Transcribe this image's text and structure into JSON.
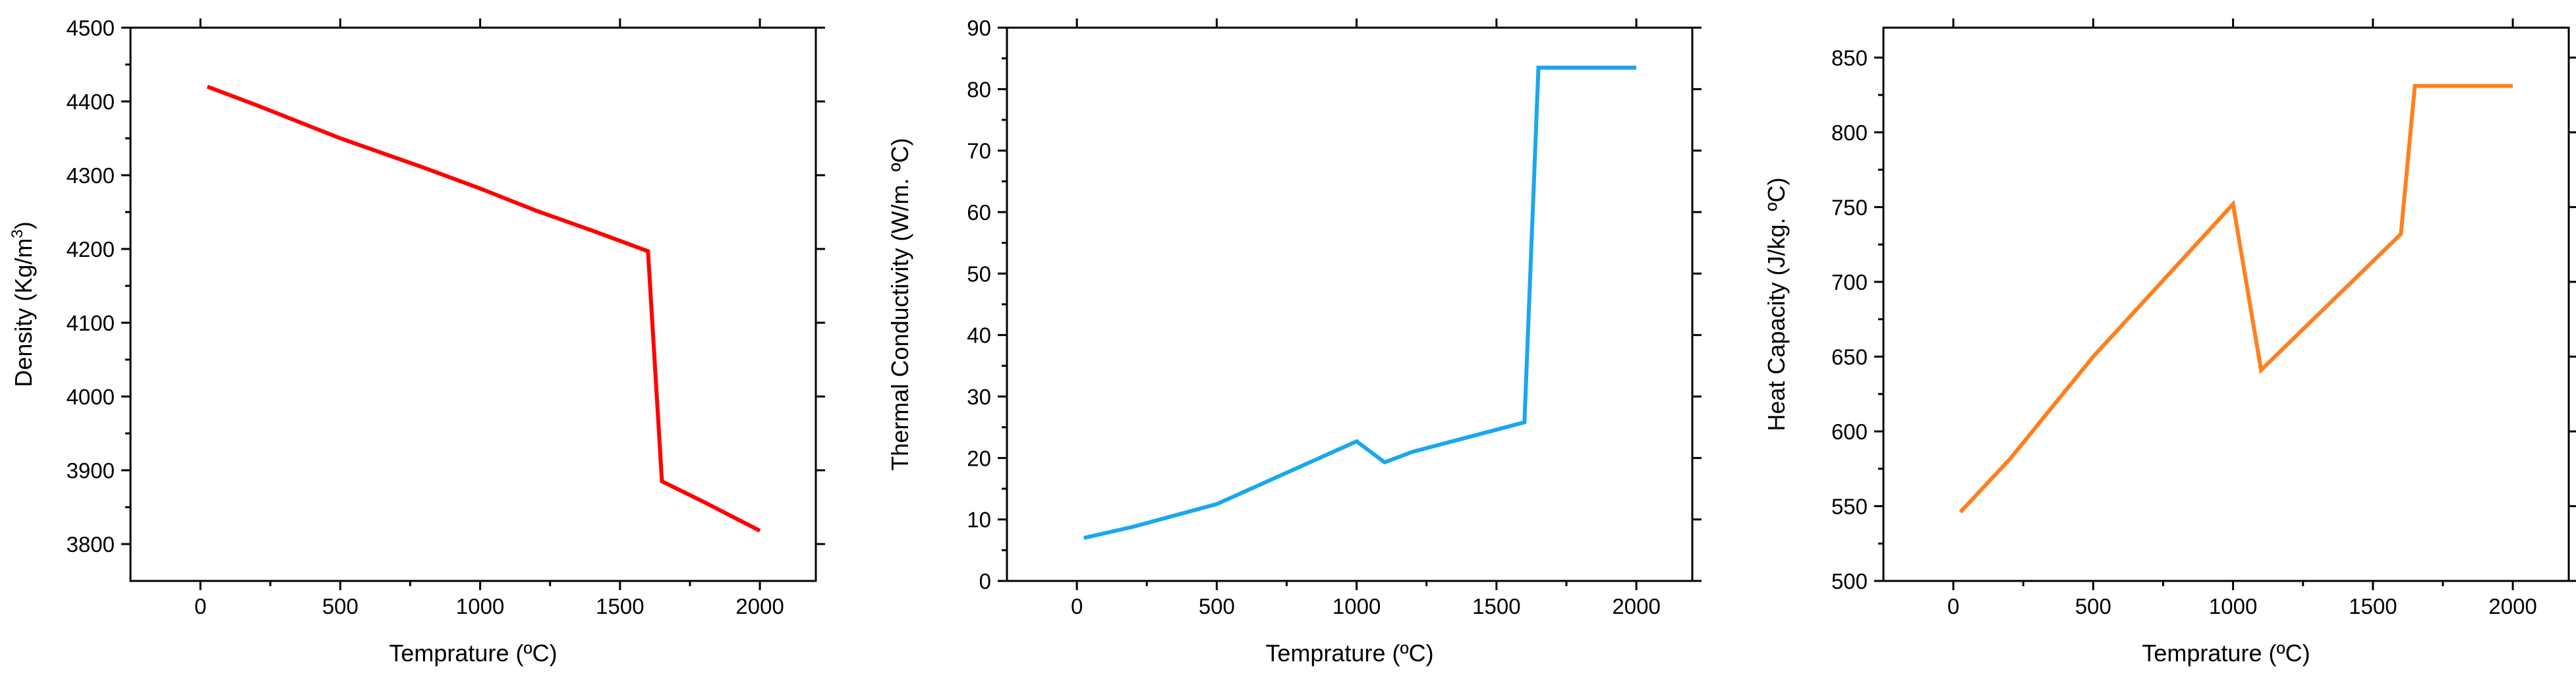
{
  "chart_data": [
    {
      "type": "line",
      "title": "",
      "xlabel": "Temprature (ºC)",
      "ylabel_main": "Density (Kg/m",
      "ylabel_sup": "3",
      "ylabel_end": ")",
      "xlim": [
        -250,
        2200
      ],
      "ylim": [
        3750,
        4500
      ],
      "xticks": [
        0,
        500,
        1000,
        1500,
        2000
      ],
      "yticks": [
        3800,
        3900,
        4000,
        4100,
        4200,
        4300,
        4400,
        4500
      ],
      "series": [
        {
          "name": "Density",
          "color": "#ff0000",
          "x": [
            25,
            200,
            500,
            800,
            1000,
            1200,
            1400,
            1600,
            1650,
            1800,
            2000
          ],
          "y": [
            4420,
            4395,
            4350,
            4310,
            4282,
            4252,
            4225,
            4197,
            3885,
            3857,
            3818
          ]
        }
      ]
    },
    {
      "type": "line",
      "title": "",
      "xlabel": "Temprature (ºC)",
      "ylabel_main": "Thermal Conductivity (W/m. ºC)",
      "ylabel_sup": "",
      "ylabel_end": "",
      "xlim": [
        -250,
        2200
      ],
      "ylim": [
        0,
        90
      ],
      "xticks": [
        0,
        500,
        1000,
        1500,
        2000
      ],
      "yticks": [
        0,
        10,
        20,
        30,
        40,
        50,
        60,
        70,
        80,
        90
      ],
      "series": [
        {
          "name": "Thermal Conductivity",
          "color": "#1aa7ee",
          "x": [
            25,
            200,
            500,
            1000,
            1100,
            1200,
            1600,
            1650,
            2000
          ],
          "y": [
            7,
            8.8,
            12.5,
            22.7,
            19.3,
            21,
            25.8,
            83.5,
            83.5
          ]
        }
      ]
    },
    {
      "type": "line",
      "title": "",
      "xlabel": "Temprature (ºC)",
      "ylabel_main": "Heat Capacity (J/kg. ºC)",
      "ylabel_sup": "",
      "ylabel_end": "",
      "xlim": [
        -250,
        2200
      ],
      "ylim": [
        500,
        870
      ],
      "xticks": [
        0,
        500,
        1000,
        1500,
        2000
      ],
      "yticks": [
        500,
        550,
        600,
        650,
        700,
        750,
        800,
        850
      ],
      "series": [
        {
          "name": "Heat Capacity",
          "color": "#ff7f1e",
          "x": [
            25,
            200,
            500,
            1000,
            1100,
            1600,
            1650,
            2000
          ],
          "y": [
            546,
            581,
            650,
            752,
            641,
            732,
            831,
            831
          ]
        }
      ]
    }
  ]
}
